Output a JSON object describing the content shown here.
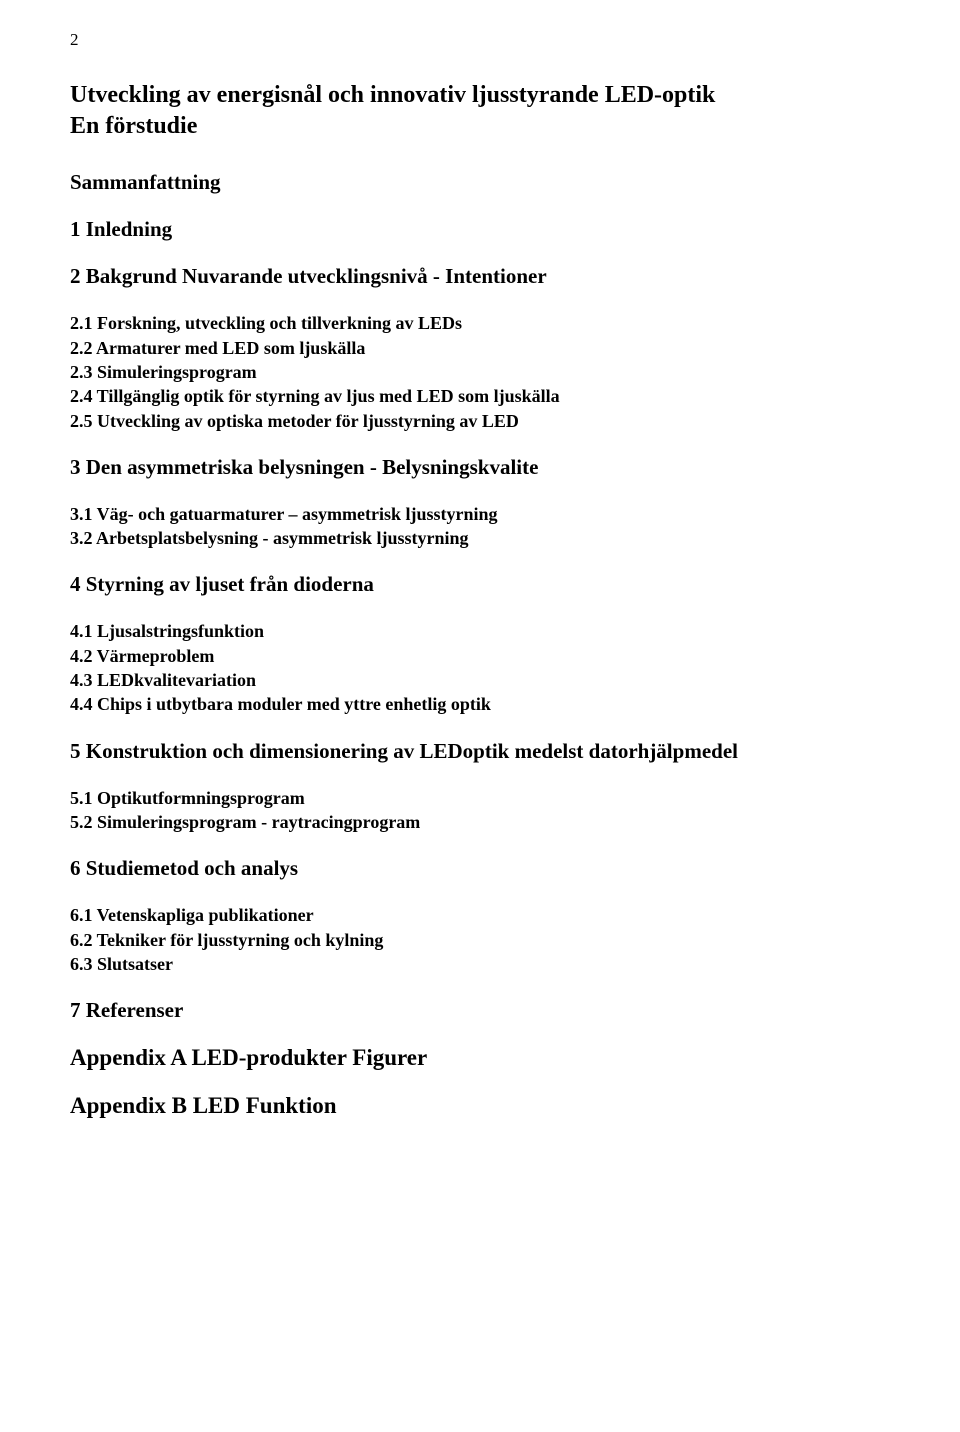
{
  "page_number": "2",
  "title_line1": "Utveckling av energisnål och innovativ ljusstyrande LED-optik",
  "title_line2": "En förstudie",
  "sections": {
    "sammanfattning": "Sammanfattning",
    "s1": "1  Inledning",
    "s2": "2  Bakgrund  Nuvarande utvecklingsnivå - Intentioner",
    "s2_1": "2.1 Forskning, utveckling och tillverkning av LEDs",
    "s2_2": "2.2 Armaturer med LED som ljuskälla",
    "s2_3": "2.3 Simuleringsprogram",
    "s2_4": "2.4 Tillgänglig optik för styrning av ljus med LED som ljuskälla",
    "s2_5": "2.5 Utveckling av optiska metoder för ljusstyrning av LED",
    "s3": "3  Den asymmetriska belysningen - Belysningskvalite",
    "s3_1": "3.1 Väg- och gatuarmaturer – asymmetrisk ljusstyrning",
    "s3_2": "3.2 Arbetsplatsbelysning - asymmetrisk ljusstyrning",
    "s4": "4  Styrning av ljuset från dioderna",
    "s4_1": "4.1 Ljusalstringsfunktion",
    "s4_2": "4.2 Värmeproblem",
    "s4_3": "4.3 LEDkvalitevariation",
    "s4_4": "4.4 Chips i utbytbara moduler med yttre enhetlig optik",
    "s5": "5   Konstruktion och dimensionering av LEDoptik medelst datorhjälpmedel",
    "s5_1": "5.1 Optikutformningsprogram",
    "s5_2": "5.2 Simuleringsprogram - raytracingprogram",
    "s6": "6   Studiemetod och analys",
    "s6_1": "6.1 Vetenskapliga publikationer",
    "s6_2": "6.2 Tekniker för ljusstyrning och kylning",
    "s6_3": "6.3 Slutsatser",
    "s7": "7   Referenser",
    "appendix_a": "Appendix A LED-produkter Figurer",
    "appendix_b": "Appendix B LED Funktion"
  }
}
